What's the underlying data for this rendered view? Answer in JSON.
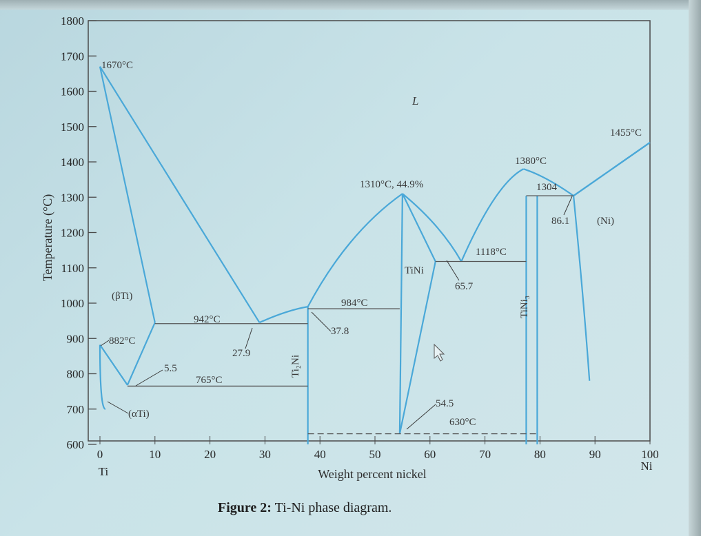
{
  "chart_data": {
    "type": "phase-diagram",
    "title": "Figure 2: Ti-Ni phase diagram.",
    "caption_bold": "Figure 2:",
    "caption_rest": " Ti-Ni phase diagram.",
    "ylabel": "Temperature (°C)",
    "xlabel": "Weight percent nickel",
    "ylim": [
      600,
      1800
    ],
    "xlim": [
      0,
      100
    ],
    "y_ticks": [
      "1800",
      "1700",
      "1600",
      "1500",
      "1400",
      "1300",
      "1200",
      "1100",
      "1000",
      "900",
      "800",
      "700",
      "600"
    ],
    "x_ticks": [
      "0",
      "10",
      "20",
      "30",
      "40",
      "50",
      "60",
      "70",
      "80",
      "90",
      "100"
    ],
    "x_end_labels": {
      "left": "Ti",
      "right": "Ni"
    },
    "phase_labels": {
      "liquid": "L",
      "beta_ti": "(βTi)",
      "alpha_ti": "(αTi)",
      "ti2ni": "Ti₂Ni",
      "tini": "TiNi",
      "tini3": "TiNi₃",
      "ni": "(Ni)"
    },
    "annotations": {
      "ti_melt": "1670°C",
      "ni_melt": "1455°C",
      "tini_congruent": "1310°C, 44.9%",
      "tini3_congruent": "1380°C",
      "peritectic_1304": "1304",
      "eutectic_1118": "1118°C",
      "eutectic_942": "942°C",
      "peritectic_984": "984°C",
      "eutectoid_765": "765°C",
      "eutectoid_630": "630°C",
      "transform_882": "882°C",
      "comp_5_5": "5.5",
      "comp_27_9": "27.9",
      "comp_37_8": "37.8",
      "comp_54_5": "54.5",
      "comp_65_7": "65.7",
      "comp_86_1": "86.1"
    },
    "boundaries": [
      {
        "name": "beta-liquidus-left",
        "points": [
          [
            0,
            1670
          ],
          [
            29,
            945
          ]
        ]
      },
      {
        "name": "beta-solidus-left",
        "points": [
          [
            0,
            1670
          ],
          [
            10,
            945
          ]
        ]
      },
      {
        "name": "beta-transus-left",
        "points": [
          [
            0,
            882
          ],
          [
            5,
            768
          ]
        ]
      },
      {
        "name": "beta-transus-right",
        "points": [
          [
            5,
            768
          ],
          [
            10,
            945
          ]
        ]
      },
      {
        "name": "alpha-solvus",
        "points": [
          [
            0,
            882
          ],
          [
            0,
            700
          ],
          [
            1,
            700
          ]
        ]
      },
      {
        "name": "liquidus-27-38",
        "points": [
          [
            29,
            945
          ],
          [
            34,
            980
          ],
          [
            37.8,
            990
          ]
        ]
      },
      {
        "name": "liquidus-tini-left",
        "points": [
          [
            37.8,
            990
          ],
          [
            45,
            1200
          ],
          [
            55,
            1310
          ]
        ]
      },
      {
        "name": "liquidus-tini-right",
        "points": [
          [
            55,
            1310
          ],
          [
            62,
            1220
          ],
          [
            65.7,
            1118
          ]
        ]
      },
      {
        "name": "tini-solidus-right",
        "points": [
          [
            55,
            1310
          ],
          [
            61,
            1118
          ]
        ]
      },
      {
        "name": "liquidus-tini3-left",
        "points": [
          [
            65.7,
            1118
          ],
          [
            72,
            1340
          ],
          [
            77,
            1380
          ]
        ]
      },
      {
        "name": "liquidus-tini3-right",
        "points": [
          [
            77,
            1380
          ],
          [
            81,
            1360
          ],
          [
            86.1,
            1304
          ]
        ]
      },
      {
        "name": "liquidus-ni",
        "points": [
          [
            86.1,
            1304
          ],
          [
            100,
            1455
          ]
        ]
      },
      {
        "name": "solidus-ni",
        "points": [
          [
            86.1,
            1304
          ],
          [
            100,
            1455
          ]
        ]
      },
      {
        "name": "ni-solvus",
        "points": [
          [
            86.1,
            1304
          ],
          [
            88,
            1000
          ],
          [
            89,
            780
          ]
        ]
      },
      {
        "name": "tini-left-solvus",
        "points": [
          [
            54.5,
            630
          ],
          [
            55,
            1310
          ]
        ]
      },
      {
        "name": "tini-right-solvus",
        "points": [
          [
            54.5,
            630
          ],
          [
            61,
            1118
          ]
        ]
      },
      {
        "name": "ti2ni-phase",
        "points": [
          [
            37.8,
            990
          ],
          [
            37.8,
            600
          ]
        ]
      },
      {
        "name": "tini3-left",
        "points": [
          [
            77.5,
            1304
          ],
          [
            77.5,
            600
          ]
        ]
      },
      {
        "name": "tini3-right",
        "points": [
          [
            79.5,
            1304
          ],
          [
            79.5,
            600
          ]
        ]
      }
    ],
    "isotherms": [
      {
        "name": "iso-942",
        "x": [
          10,
          37.8
        ],
        "y": 942
      },
      {
        "name": "iso-765",
        "x": [
          5,
          37.8
        ],
        "y": 765
      },
      {
        "name": "iso-984",
        "x": [
          37.8,
          54.5
        ],
        "y": 984
      },
      {
        "name": "iso-1118",
        "x": [
          61,
          77.5
        ],
        "y": 1118
      },
      {
        "name": "iso-1304",
        "x": [
          77.5,
          86.1
        ],
        "y": 1304
      },
      {
        "name": "iso-630",
        "x": [
          37.8,
          79.5
        ],
        "y": 630,
        "dashed": true
      }
    ]
  }
}
